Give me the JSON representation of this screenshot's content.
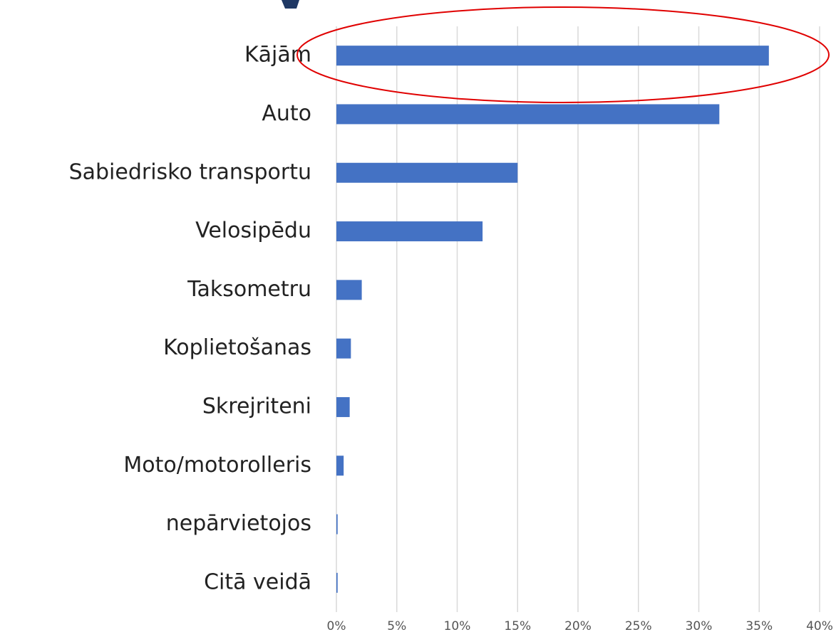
{
  "chart_data": {
    "type": "bar",
    "orientation": "horizontal",
    "categories": [
      "Kājām",
      "Auto",
      "Sabiedrisko transportu",
      "Velosipēdu",
      "Taksometru",
      "Koplietošanas",
      "Skrejriteni",
      "Moto/motorolleris",
      "nepārvietojos",
      "Citā veidā"
    ],
    "values": [
      35.8,
      31.7,
      15.0,
      12.1,
      2.1,
      1.2,
      1.1,
      0.6,
      0.1,
      0.1
    ],
    "color": "#4472c4",
    "xlim": [
      0,
      40
    ],
    "xticks": [
      {
        "value": 0,
        "label": "0%"
      },
      {
        "value": 5,
        "label": "5%"
      },
      {
        "value": 10,
        "label": "10%"
      },
      {
        "value": 15,
        "label": "15%"
      },
      {
        "value": 20,
        "label": "20%"
      },
      {
        "value": 25,
        "label": "25%"
      },
      {
        "value": 30,
        "label": "30%"
      },
      {
        "value": 35,
        "label": "35%"
      },
      {
        "value": 40,
        "label": "40%"
      }
    ],
    "grid": true
  }
}
